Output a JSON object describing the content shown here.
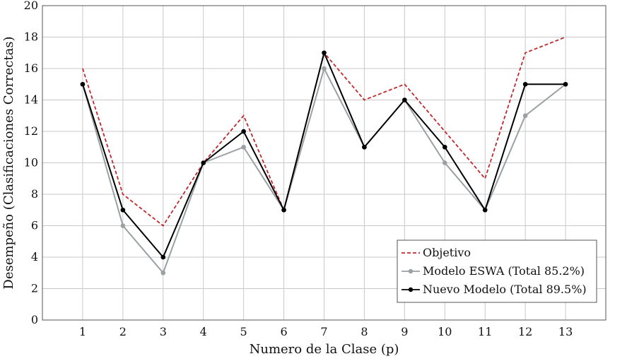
{
  "chart_data": {
    "type": "line",
    "x": [
      1,
      2,
      3,
      4,
      5,
      6,
      7,
      8,
      9,
      10,
      11,
      12,
      13
    ],
    "xlim": [
      0,
      14
    ],
    "ylim": [
      0,
      20
    ],
    "xticks": [
      1,
      2,
      3,
      4,
      5,
      6,
      7,
      8,
      9,
      10,
      11,
      12,
      13
    ],
    "yticks": [
      0,
      2,
      4,
      6,
      8,
      10,
      12,
      14,
      16,
      18,
      20
    ],
    "xlabel": "Numero de la Clase (p)",
    "ylabel": "Desempeño (Clasificaciones Correctas)",
    "grid": true,
    "legend_position": "bottom-right",
    "series": [
      {
        "name": "Objetivo",
        "values": [
          16,
          8,
          6,
          10,
          13,
          7,
          17,
          14,
          15,
          12,
          9,
          17,
          18
        ],
        "color": "#c0282d",
        "style": "dashed",
        "markers": false
      },
      {
        "name": "Modelo ESWA (Total 85.2%)",
        "values": [
          15,
          6,
          3,
          10,
          11,
          7,
          16,
          11,
          14,
          10,
          7,
          13,
          15
        ],
        "color": "#9aa0a3",
        "style": "solid",
        "markers": true
      },
      {
        "name": "Nuevo Modelo (Total 89.5%)",
        "values": [
          15,
          7,
          4,
          10,
          12,
          7,
          17,
          11,
          14,
          11,
          7,
          15,
          15
        ],
        "color": "#000000",
        "style": "solid",
        "markers": true
      }
    ]
  }
}
